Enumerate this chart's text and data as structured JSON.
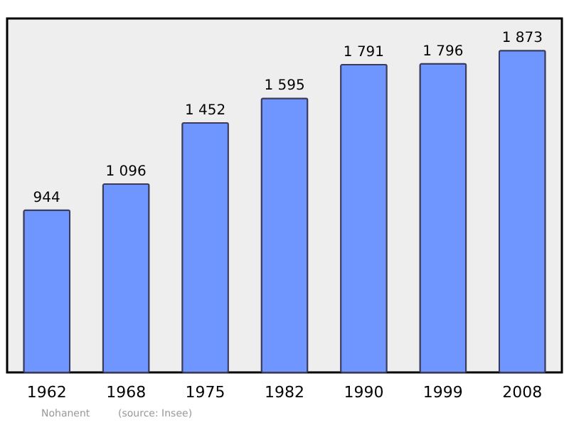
{
  "chart_data": {
    "type": "bar",
    "categories": [
      "1962",
      "1968",
      "1975",
      "1982",
      "1990",
      "1999",
      "2008"
    ],
    "values": [
      944,
      1096,
      1452,
      1595,
      1791,
      1796,
      1873
    ],
    "value_labels": [
      "944",
      "1 096",
      "1 452",
      "1 595",
      "1 791",
      "1 796",
      "1 873"
    ],
    "color": "#6f96ff",
    "ylim": [
      0,
      2060
    ],
    "tick_labels": "x",
    "grid": false,
    "annotations": [
      "Nohanent",
      "(source: Insee)"
    ]
  }
}
